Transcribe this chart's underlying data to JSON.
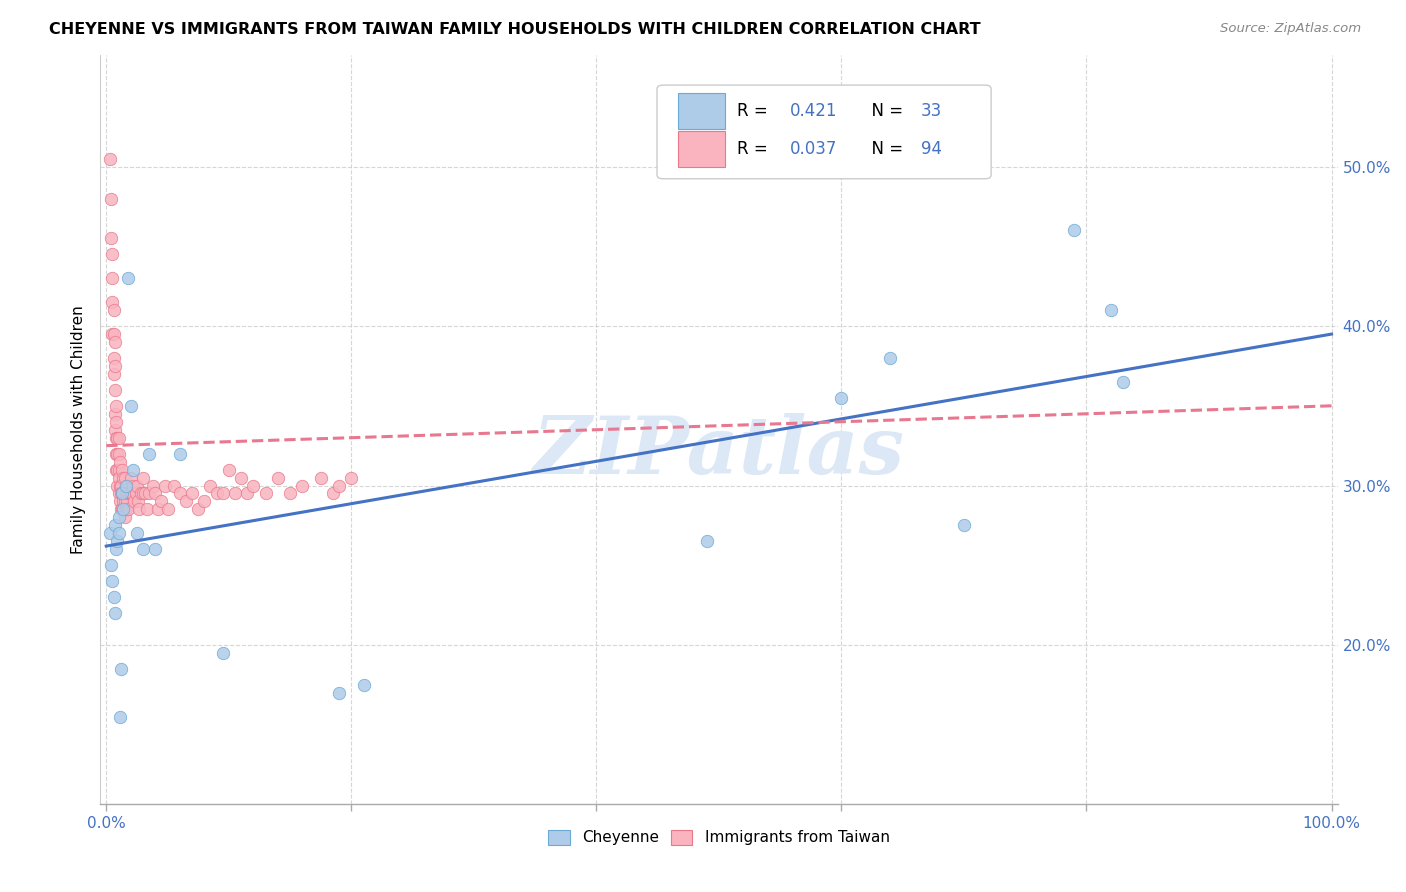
{
  "title": "CHEYENNE VS IMMIGRANTS FROM TAIWAN FAMILY HOUSEHOLDS WITH CHILDREN CORRELATION CHART",
  "source": "Source: ZipAtlas.com",
  "ylabel": "Family Households with Children",
  "cheyenne_R": "0.421",
  "cheyenne_N": "33",
  "taiwan_R": "0.037",
  "taiwan_N": "94",
  "cheyenne_dot_color": "#aecbe8",
  "cheyenne_edge_color": "#6aaad4",
  "taiwan_dot_color": "#f9b4c0",
  "taiwan_edge_color": "#e8788a",
  "cheyenne_line_color": "#4472c4",
  "taiwan_line_color": "#e87890",
  "watermark_color": "#dce8f5",
  "legend_text_color": "#4472c4",
  "legend_box_color": "#dddddd",
  "xtick_color": "#4472c4",
  "ytick_color": "#4472c4",
  "grid_color": "#cccccc",
  "xlim": [
    -0.005,
    1.005
  ],
  "ylim": [
    0.1,
    0.57
  ],
  "cheyenne_x": [
    0.003,
    0.004,
    0.005,
    0.006,
    0.007,
    0.007,
    0.008,
    0.009,
    0.01,
    0.01,
    0.011,
    0.012,
    0.013,
    0.014,
    0.016,
    0.018,
    0.02,
    0.022,
    0.025,
    0.03,
    0.035,
    0.04,
    0.06,
    0.095,
    0.19,
    0.21,
    0.49,
    0.6,
    0.64,
    0.7,
    0.79,
    0.82,
    0.83
  ],
  "cheyenne_y": [
    0.27,
    0.25,
    0.24,
    0.23,
    0.22,
    0.275,
    0.26,
    0.265,
    0.27,
    0.28,
    0.155,
    0.185,
    0.295,
    0.285,
    0.3,
    0.43,
    0.35,
    0.31,
    0.27,
    0.26,
    0.32,
    0.26,
    0.32,
    0.195,
    0.17,
    0.175,
    0.265,
    0.355,
    0.38,
    0.275,
    0.46,
    0.41,
    0.365
  ],
  "taiwan_x": [
    0.003,
    0.004,
    0.004,
    0.005,
    0.005,
    0.005,
    0.005,
    0.006,
    0.006,
    0.006,
    0.006,
    0.007,
    0.007,
    0.007,
    0.007,
    0.007,
    0.008,
    0.008,
    0.008,
    0.008,
    0.008,
    0.009,
    0.009,
    0.009,
    0.009,
    0.01,
    0.01,
    0.01,
    0.01,
    0.01,
    0.011,
    0.011,
    0.011,
    0.012,
    0.012,
    0.012,
    0.013,
    0.013,
    0.013,
    0.014,
    0.014,
    0.015,
    0.015,
    0.015,
    0.016,
    0.016,
    0.017,
    0.017,
    0.018,
    0.018,
    0.019,
    0.02,
    0.02,
    0.021,
    0.022,
    0.023,
    0.024,
    0.025,
    0.026,
    0.027,
    0.028,
    0.03,
    0.03,
    0.032,
    0.033,
    0.035,
    0.038,
    0.04,
    0.042,
    0.045,
    0.048,
    0.05,
    0.055,
    0.06,
    0.065,
    0.07,
    0.075,
    0.08,
    0.085,
    0.09,
    0.095,
    0.1,
    0.105,
    0.11,
    0.115,
    0.12,
    0.13,
    0.14,
    0.15,
    0.16,
    0.175,
    0.185,
    0.19,
    0.2
  ],
  "taiwan_y": [
    0.505,
    0.48,
    0.455,
    0.445,
    0.43,
    0.415,
    0.395,
    0.41,
    0.395,
    0.38,
    0.37,
    0.39,
    0.375,
    0.36,
    0.345,
    0.335,
    0.35,
    0.34,
    0.33,
    0.32,
    0.31,
    0.33,
    0.32,
    0.31,
    0.3,
    0.33,
    0.32,
    0.31,
    0.305,
    0.295,
    0.315,
    0.3,
    0.29,
    0.3,
    0.295,
    0.285,
    0.31,
    0.295,
    0.285,
    0.305,
    0.29,
    0.305,
    0.29,
    0.28,
    0.295,
    0.285,
    0.3,
    0.29,
    0.295,
    0.285,
    0.295,
    0.305,
    0.295,
    0.295,
    0.3,
    0.29,
    0.295,
    0.3,
    0.29,
    0.285,
    0.295,
    0.305,
    0.295,
    0.295,
    0.285,
    0.295,
    0.3,
    0.295,
    0.285,
    0.29,
    0.3,
    0.285,
    0.3,
    0.295,
    0.29,
    0.295,
    0.285,
    0.29,
    0.3,
    0.295,
    0.295,
    0.31,
    0.295,
    0.305,
    0.295,
    0.3,
    0.295,
    0.305,
    0.295,
    0.3,
    0.305,
    0.295,
    0.3,
    0.305
  ],
  "cheyenne_line_x": [
    0.0,
    1.0
  ],
  "cheyenne_line_y": [
    0.262,
    0.395
  ],
  "taiwan_line_x": [
    0.0,
    1.0
  ],
  "taiwan_line_y": [
    0.325,
    0.35
  ]
}
